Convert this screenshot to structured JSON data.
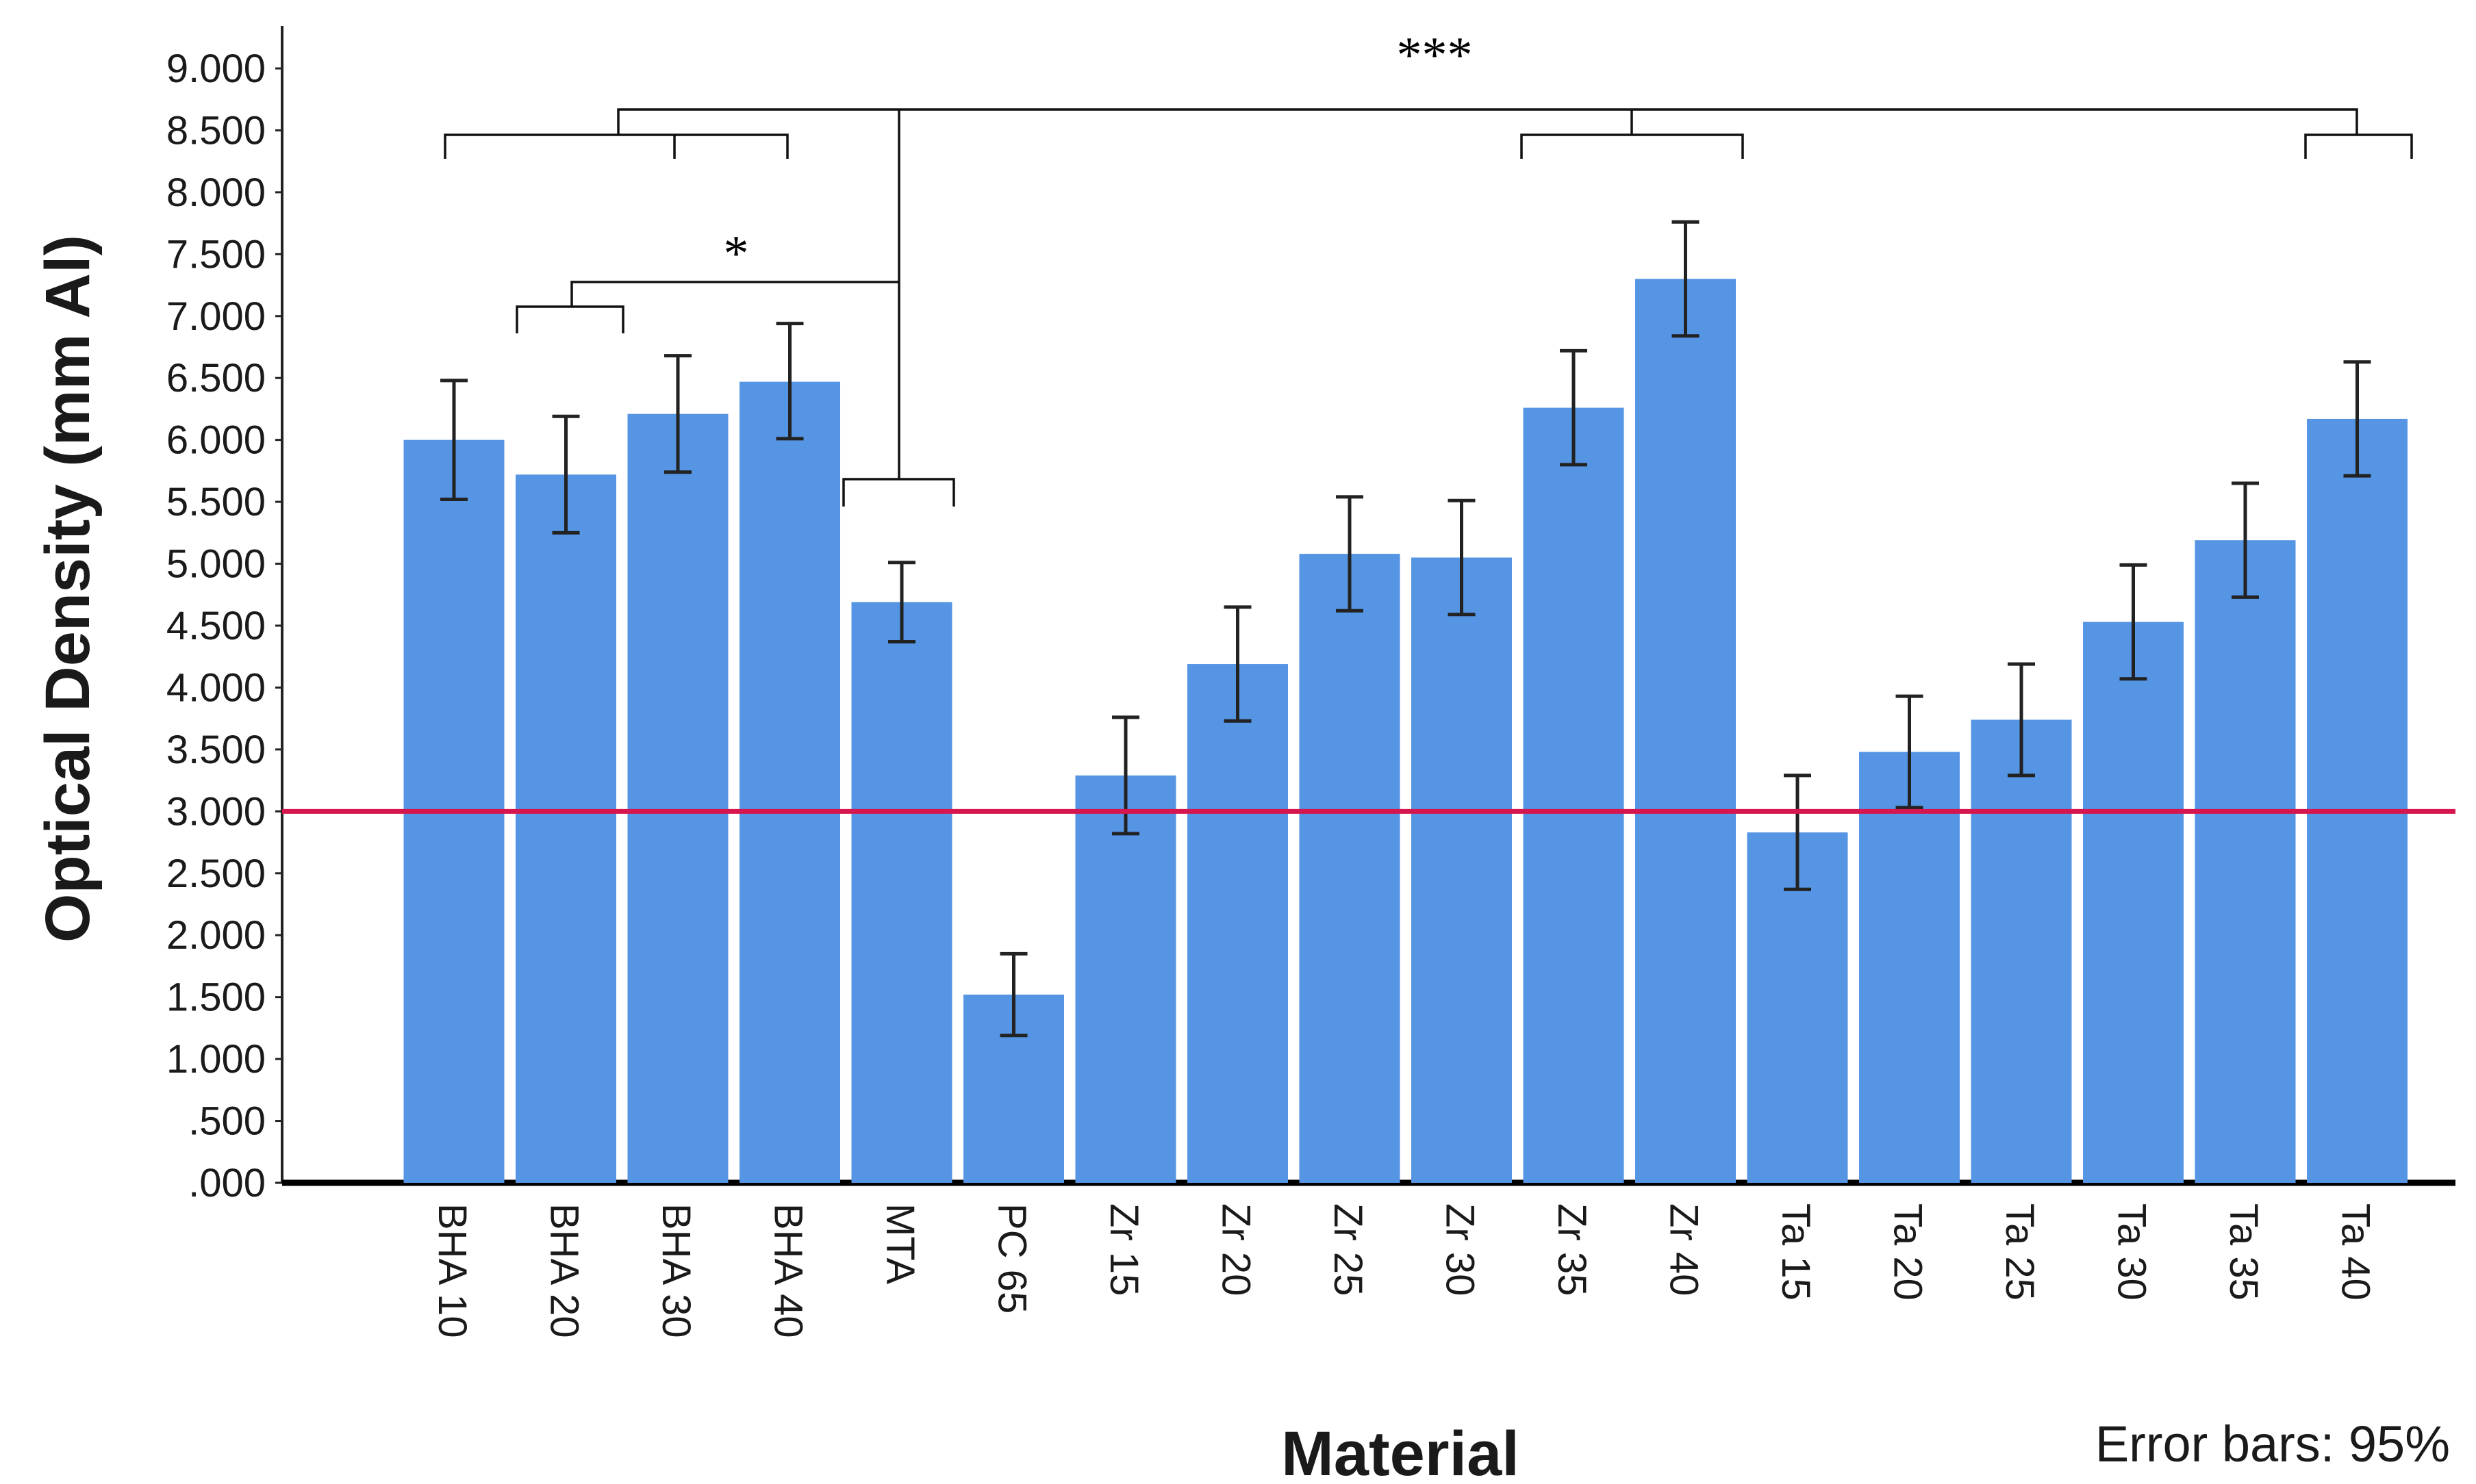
{
  "chart_data": {
    "type": "bar",
    "title": "",
    "xlabel": "Material",
    "ylabel": "Optical Density (mm Al)",
    "note": "Error bars: 95%",
    "ylim": [
      0,
      9
    ],
    "yticks": [
      ".000",
      ".500",
      "1.000",
      "1.500",
      "2.000",
      "2.500",
      "3.000",
      "3.500",
      "4.000",
      "4.500",
      "5.000",
      "5.500",
      "6.000",
      "6.500",
      "7.000",
      "7.500",
      "8.000",
      "8.500",
      "9.000"
    ],
    "categories": [
      "BHA 10",
      "BHA 20",
      "BHA 30",
      "BHA 40",
      "MTA",
      "PC 65",
      "Zr 15",
      "Zr 20",
      "Zr 25",
      "Zr 30",
      "Zr 35",
      "Zr 40",
      "Ta 15",
      "Ta 20",
      "Ta 25",
      "Ta 30",
      "Ta 35",
      "Ta 40"
    ],
    "values": [
      6.0,
      5.72,
      6.21,
      6.47,
      4.69,
      1.52,
      3.29,
      4.19,
      5.08,
      5.05,
      6.26,
      7.3,
      2.83,
      3.48,
      3.74,
      4.53,
      5.19,
      6.17
    ],
    "error_low": [
      5.52,
      5.25,
      5.74,
      6.01,
      4.37,
      1.19,
      2.82,
      3.73,
      4.62,
      4.59,
      5.8,
      6.84,
      2.37,
      3.03,
      3.29,
      4.07,
      4.73,
      5.71
    ],
    "error_high": [
      6.48,
      6.19,
      6.68,
      6.94,
      5.01,
      1.85,
      3.76,
      4.65,
      5.54,
      5.51,
      6.72,
      7.76,
      3.29,
      3.93,
      4.19,
      4.99,
      5.65,
      6.63
    ],
    "reference_line": {
      "value": 3.0,
      "color": "#d6174f"
    },
    "bar_color": "#5595e3",
    "annotations": {
      "top_sig": "***",
      "inner_sig": "*"
    }
  }
}
